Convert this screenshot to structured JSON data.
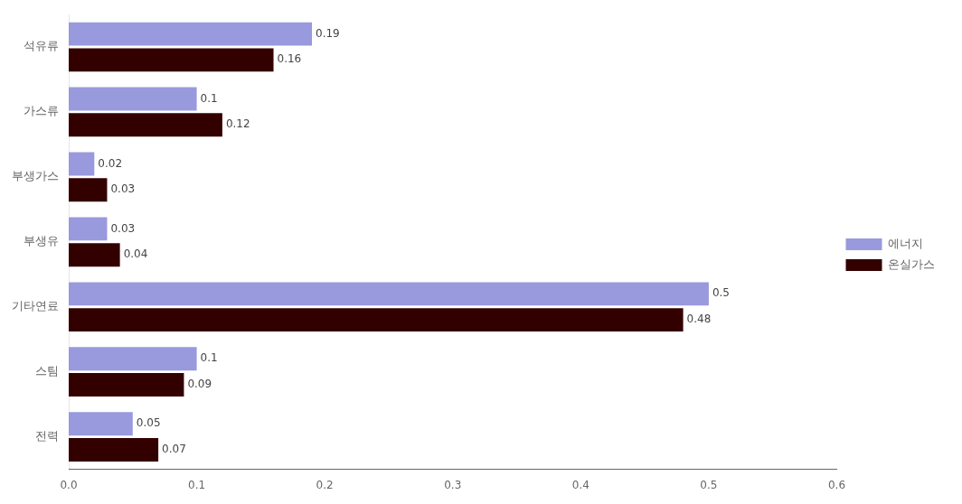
{
  "chart_data": {
    "type": "bar",
    "orientation": "horizontal",
    "categories": [
      "석유류",
      "가스류",
      "부생가스",
      "부생유",
      "기타연료",
      "스팀",
      "전력"
    ],
    "series": [
      {
        "name": "에너지",
        "color": "#9999dd",
        "values": [
          0.19,
          0.1,
          0.02,
          0.03,
          0.5,
          0.1,
          0.05
        ]
      },
      {
        "name": "온실가스",
        "color": "#330000",
        "values": [
          0.16,
          0.12,
          0.03,
          0.04,
          0.48,
          0.09,
          0.07
        ]
      }
    ],
    "xlim": [
      0,
      0.6
    ],
    "xticks": [
      {
        "value": 0,
        "label": "0.0"
      },
      0.1,
      0.2,
      0.3,
      0.4,
      0.5,
      0.6
    ],
    "grid": false,
    "legend": "right",
    "data_labels": true
  }
}
